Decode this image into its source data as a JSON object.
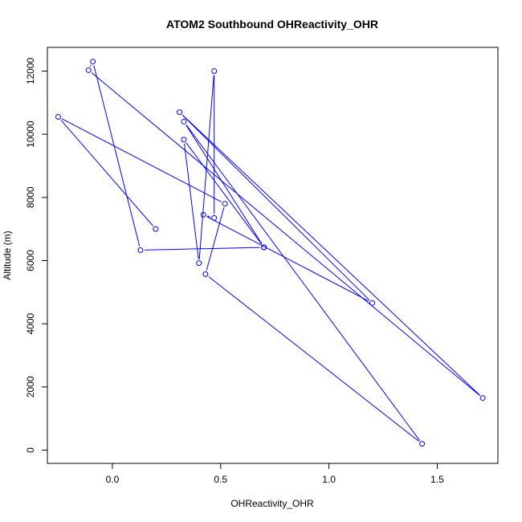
{
  "chart_data": {
    "type": "line",
    "title": "ATOM2 Southbound OHReactivity_OHR",
    "xlabel": "OHReactivity_OHR",
    "ylabel": "Altitude (m)",
    "xlim": [
      -0.3,
      1.78
    ],
    "ylim": [
      -420,
      12750
    ],
    "xticks": [
      0.0,
      0.5,
      1.0,
      1.5
    ],
    "xtick_labels": [
      "0.0",
      "0.5",
      "1.0",
      "1.5"
    ],
    "yticks": [
      0,
      2000,
      4000,
      6000,
      8000,
      10000,
      12000
    ],
    "ytick_labels": [
      "0",
      "2000",
      "4000",
      "6000",
      "8000",
      "10000",
      "12000"
    ],
    "grid": false,
    "color": "#0000ff",
    "series": [
      {
        "marker": "open-circle",
        "points": [
          {
            "x": 0.2,
            "y": 7000
          },
          {
            "x": -0.25,
            "y": 10550
          },
          {
            "x": 0.52,
            "y": 7800
          },
          {
            "x": 0.43,
            "y": 5570
          },
          {
            "x": 1.43,
            "y": 200
          },
          {
            "x": 0.33,
            "y": 10400
          },
          {
            "x": 0.7,
            "y": 6420
          },
          {
            "x": 0.33,
            "y": 9830
          },
          {
            "x": 0.4,
            "y": 5920
          },
          {
            "x": 0.47,
            "y": 12000
          },
          {
            "x": 0.47,
            "y": 7350
          },
          {
            "x": 0.42,
            "y": 7450
          },
          {
            "x": 1.2,
            "y": 4660
          },
          {
            "x": 0.31,
            "y": 10700
          },
          {
            "x": 1.71,
            "y": 1650
          },
          {
            "x": -0.11,
            "y": 12030
          },
          {
            "x": -0.09,
            "y": 12300
          },
          {
            "x": 0.13,
            "y": 6330
          },
          {
            "x": 0.7,
            "y": 6420
          }
        ]
      }
    ]
  }
}
